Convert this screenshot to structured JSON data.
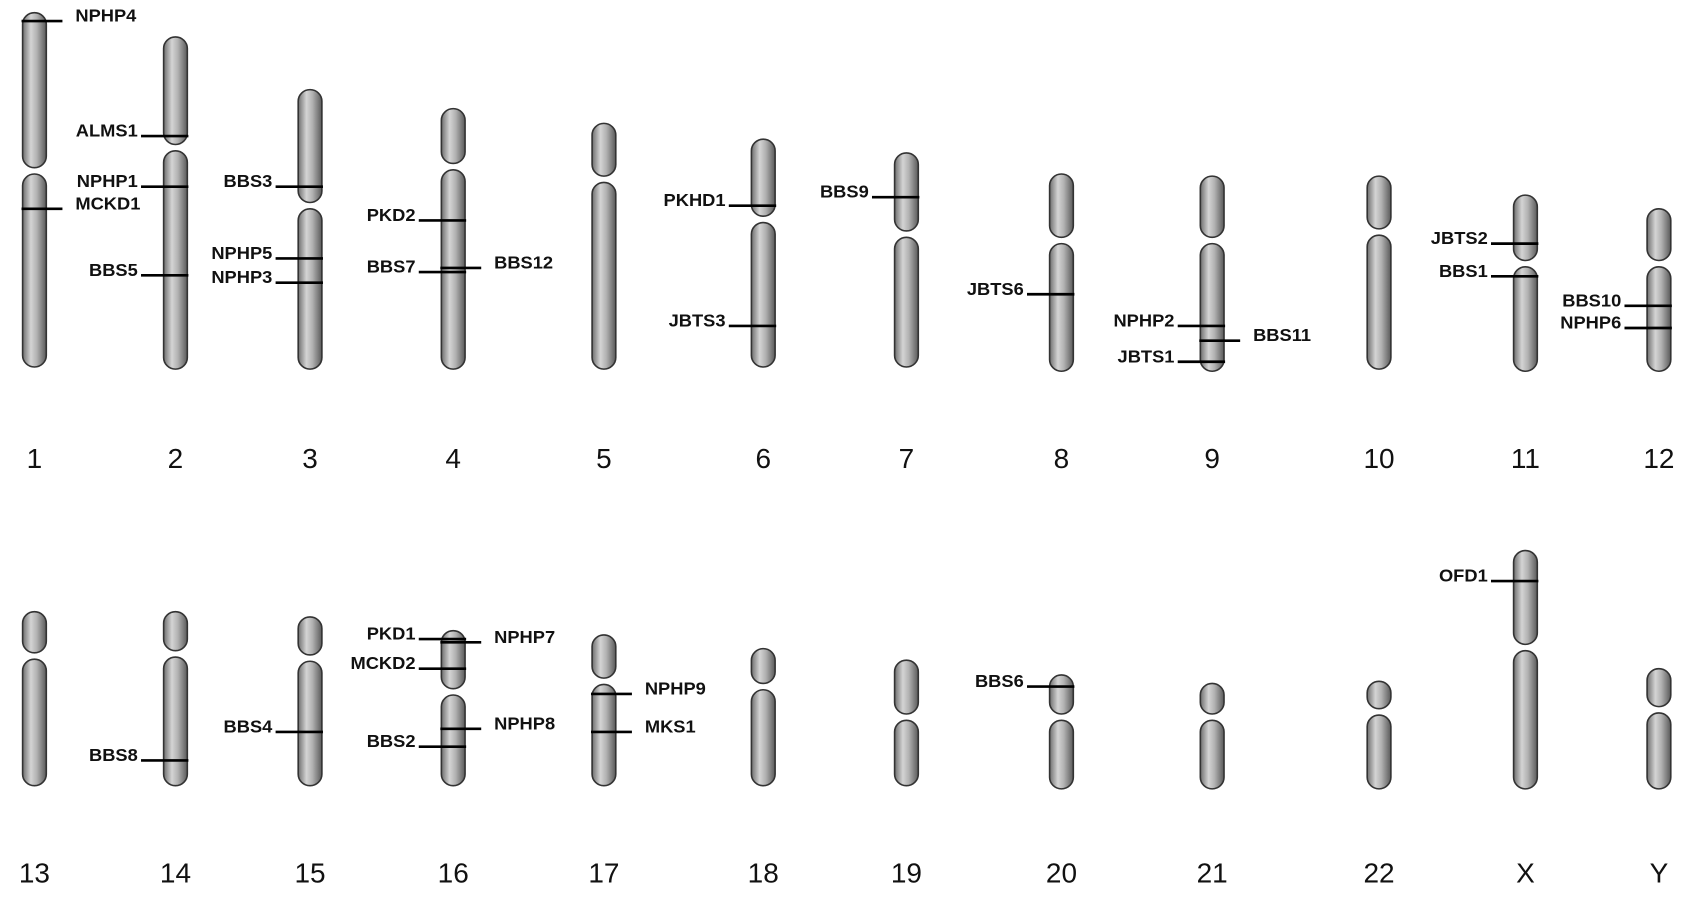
{
  "chromosomes": [
    {
      "label": "1",
      "genes": [
        "NPHP4",
        "MCKD1"
      ]
    },
    {
      "label": "2",
      "genes": [
        "ALMS1",
        "NPHP1",
        "BBS5"
      ]
    },
    {
      "label": "3",
      "genes": [
        "BBS3",
        "NPHP5",
        "NPHP3"
      ]
    },
    {
      "label": "4",
      "genes": [
        "PKD2",
        "BBS7",
        "BBS12"
      ]
    },
    {
      "label": "5",
      "genes": []
    },
    {
      "label": "6",
      "genes": [
        "PKHD1",
        "JBTS3"
      ]
    },
    {
      "label": "7",
      "genes": [
        "BBS9"
      ]
    },
    {
      "label": "8",
      "genes": [
        "JBTS6"
      ]
    },
    {
      "label": "9",
      "genes": [
        "NPHP2",
        "BBS11",
        "JBTS1"
      ]
    },
    {
      "label": "10",
      "genes": []
    },
    {
      "label": "11",
      "genes": [
        "JBTS2",
        "BBS1"
      ]
    },
    {
      "label": "12",
      "genes": [
        "BBS10",
        "NPHP6"
      ]
    },
    {
      "label": "13",
      "genes": []
    },
    {
      "label": "14",
      "genes": [
        "BBS8"
      ]
    },
    {
      "label": "15",
      "genes": [
        "BBS4"
      ]
    },
    {
      "label": "16",
      "genes": [
        "PKD1",
        "NPHP7",
        "MCKD2",
        "NPHP8",
        "BBS2"
      ]
    },
    {
      "label": "17",
      "genes": [
        "NPHP9",
        "MKS1"
      ]
    },
    {
      "label": "18",
      "genes": []
    },
    {
      "label": "19",
      "genes": []
    },
    {
      "label": "20",
      "genes": [
        "BBS6"
      ]
    },
    {
      "label": "21",
      "genes": []
    },
    {
      "label": "22",
      "genes": []
    },
    {
      "label": "X",
      "genes": [
        "OFD1"
      ]
    },
    {
      "label": "Y",
      "genes": []
    }
  ]
}
